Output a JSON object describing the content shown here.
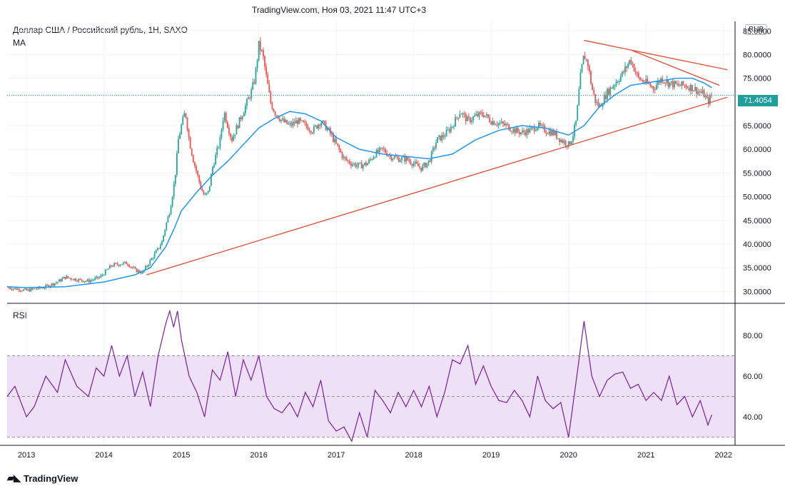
{
  "header": {
    "title": "TradingView.com, Ноя 03, 2021 11:47 UTC+3"
  },
  "main_panel": {
    "symbol": "Доллар США / Российский рубль, 1Н, SAXO",
    "indicator": "MA",
    "currency": "RUB",
    "last_price": "71.4054"
  },
  "rsi_panel": {
    "label": "RSI"
  },
  "brand": {
    "name": "TradingView"
  },
  "colors": {
    "candle_up": "#26a69a",
    "candle_down": "#ef5350",
    "ma": "#2196f3",
    "trendline": "#e24a33",
    "rsi": "#7b1fa2",
    "rsi_band": "#ede0f7",
    "last_price": "#1e9f9c"
  },
  "chart_data": [
    {
      "type": "candlestick",
      "title": "Доллар США / Российский рубль, 1Н, SAXO",
      "x_ticks": [
        "2013",
        "2014",
        "2015",
        "2016",
        "2017",
        "2018",
        "2019",
        "2020",
        "2021",
        "2022"
      ],
      "y_ticks": [
        "30.0000",
        "35.0000",
        "40.0000",
        "45.0000",
        "50.0000",
        "55.0000",
        "60.0000",
        "65.0000",
        "70.0000",
        "75.0000",
        "80.0000",
        "85.0000"
      ],
      "ylim": [
        27.5,
        87
      ],
      "xlim": [
        2012.75,
        2022.15
      ],
      "last_price": 71.4054,
      "close_series": {
        "x": [
          2012.75,
          2012.9,
          2013.0,
          2013.1,
          2013.25,
          2013.4,
          2013.5,
          2013.65,
          2013.8,
          2013.95,
          2014.1,
          2014.2,
          2014.3,
          2014.4,
          2014.5,
          2014.6,
          2014.7,
          2014.75,
          2014.8,
          2014.85,
          2014.9,
          2014.93,
          2014.96,
          2015.0,
          2015.05,
          2015.1,
          2015.15,
          2015.2,
          2015.25,
          2015.3,
          2015.35,
          2015.4,
          2015.45,
          2015.5,
          2015.55,
          2015.6,
          2015.65,
          2015.7,
          2015.8,
          2015.9,
          2015.95,
          2016.0,
          2016.05,
          2016.1,
          2016.15,
          2016.2,
          2016.3,
          2016.4,
          2016.5,
          2016.6,
          2016.7,
          2016.8,
          2016.9,
          2017.0,
          2017.1,
          2017.2,
          2017.3,
          2017.4,
          2017.5,
          2017.6,
          2017.7,
          2017.8,
          2017.9,
          2018.0,
          2018.1,
          2018.2,
          2018.3,
          2018.4,
          2018.5,
          2018.6,
          2018.7,
          2018.8,
          2018.9,
          2019.0,
          2019.1,
          2019.2,
          2019.3,
          2019.4,
          2019.5,
          2019.6,
          2019.7,
          2019.8,
          2019.9,
          2020.0,
          2020.05,
          2020.1,
          2020.15,
          2020.2,
          2020.25,
          2020.3,
          2020.35,
          2020.4,
          2020.5,
          2020.6,
          2020.7,
          2020.8,
          2020.85,
          2020.9,
          2021.0,
          2021.1,
          2021.2,
          2021.3,
          2021.4,
          2021.5,
          2021.6,
          2021.7,
          2021.75,
          2021.8,
          2021.85
        ],
        "y": [
          30.8,
          30.5,
          30.2,
          30.5,
          31.0,
          32.0,
          33.0,
          32.5,
          32.2,
          33.0,
          35.5,
          35.8,
          36.0,
          34.5,
          34.0,
          36.5,
          39.0,
          40.5,
          44.0,
          47.0,
          52.0,
          56.0,
          62.0,
          65.0,
          68.0,
          62.0,
          58.0,
          55.0,
          52.0,
          50.0,
          51.0,
          56.0,
          59.0,
          62.0,
          68.0,
          65.0,
          62.0,
          64.0,
          68.0,
          72.0,
          75.0,
          82.0,
          80.0,
          75.0,
          70.0,
          68.0,
          66.0,
          65.0,
          66.0,
          65.0,
          64.0,
          66.0,
          64.0,
          61.0,
          58.0,
          57.0,
          56.5,
          57.0,
          59.0,
          60.0,
          58.5,
          58.0,
          58.0,
          57.0,
          56.0,
          57.5,
          62.0,
          63.0,
          65.0,
          68.0,
          66.0,
          67.0,
          67.5,
          66.0,
          65.5,
          65.0,
          64.0,
          63.5,
          64.0,
          65.0,
          64.0,
          63.5,
          62.0,
          61.0,
          62.5,
          66.0,
          75.0,
          80.0,
          78.0,
          73.0,
          70.0,
          69.0,
          72.0,
          74.0,
          76.0,
          79.0,
          77.0,
          75.0,
          74.0,
          73.0,
          75.0,
          74.0,
          73.5,
          73.5,
          73.0,
          72.0,
          71.5,
          70.0,
          71.4054
        ]
      },
      "ma_series": {
        "x": [
          2012.75,
          2013.0,
          2013.5,
          2014.0,
          2014.4,
          2014.6,
          2014.8,
          2014.9,
          2015.0,
          2015.2,
          2015.4,
          2015.6,
          2015.8,
          2016.0,
          2016.2,
          2016.4,
          2016.6,
          2016.8,
          2017.0,
          2017.3,
          2017.6,
          2017.9,
          2018.2,
          2018.5,
          2018.8,
          2019.1,
          2019.4,
          2019.7,
          2020.0,
          2020.2,
          2020.4,
          2020.6,
          2020.8,
          2021.0,
          2021.2,
          2021.4,
          2021.6,
          2021.75,
          2021.85
        ],
        "y": [
          31.0,
          30.8,
          31.0,
          32.0,
          33.5,
          35.0,
          39.5,
          43.0,
          47.0,
          51.0,
          54.5,
          57.5,
          61.0,
          64.5,
          66.5,
          68.0,
          67.5,
          66.0,
          62.5,
          60.0,
          59.0,
          58.5,
          58.0,
          59.0,
          62.0,
          64.0,
          65.0,
          64.5,
          63.0,
          65.0,
          69.0,
          71.5,
          73.5,
          74.0,
          74.5,
          75.0,
          75.0,
          74.0,
          73.0
        ]
      },
      "trendlines": [
        {
          "x": [
            2014.55,
            2022.05
          ],
          "y": [
            33.5,
            71.0
          ]
        },
        {
          "x": [
            2020.2,
            2022.05
          ],
          "y": [
            83.0,
            76.8
          ]
        },
        {
          "x": [
            2020.8,
            2021.95
          ],
          "y": [
            81.0,
            73.5
          ]
        }
      ]
    },
    {
      "type": "line",
      "title": "RSI",
      "y_ticks": [
        "40.00",
        "60.00",
        "80.00"
      ],
      "ylim": [
        26,
        94
      ],
      "bands": [
        30,
        50,
        70
      ],
      "x": [
        2012.75,
        2012.85,
        2013.0,
        2013.1,
        2013.25,
        2013.4,
        2013.5,
        2013.65,
        2013.8,
        2013.9,
        2014.0,
        2014.1,
        2014.2,
        2014.3,
        2014.4,
        2014.5,
        2014.6,
        2014.7,
        2014.8,
        2014.85,
        2014.9,
        2014.95,
        2015.0,
        2015.1,
        2015.2,
        2015.3,
        2015.4,
        2015.5,
        2015.6,
        2015.7,
        2015.8,
        2015.9,
        2016.0,
        2016.1,
        2016.2,
        2016.3,
        2016.4,
        2016.5,
        2016.6,
        2016.7,
        2016.8,
        2016.9,
        2017.0,
        2017.1,
        2017.2,
        2017.3,
        2017.4,
        2017.5,
        2017.6,
        2017.7,
        2017.8,
        2017.9,
        2018.0,
        2018.1,
        2018.2,
        2018.3,
        2018.4,
        2018.5,
        2018.6,
        2018.7,
        2018.8,
        2018.9,
        2019.0,
        2019.1,
        2019.2,
        2019.3,
        2019.4,
        2019.5,
        2019.6,
        2019.7,
        2019.8,
        2019.9,
        2020.0,
        2020.1,
        2020.2,
        2020.3,
        2020.4,
        2020.5,
        2020.6,
        2020.7,
        2020.8,
        2020.9,
        2021.0,
        2021.1,
        2021.2,
        2021.3,
        2021.4,
        2021.5,
        2021.6,
        2021.7,
        2021.8,
        2021.85
      ],
      "y": [
        50,
        55,
        40,
        45,
        60,
        52,
        68,
        55,
        50,
        64,
        60,
        75,
        60,
        70,
        50,
        62,
        45,
        70,
        86,
        92,
        84,
        92,
        78,
        60,
        52,
        40,
        63,
        58,
        72,
        50,
        68,
        58,
        70,
        50,
        44,
        42,
        47,
        40,
        52,
        45,
        58,
        38,
        33,
        35,
        28,
        42,
        30,
        53,
        48,
        42,
        52,
        45,
        53,
        45,
        55,
        40,
        52,
        68,
        66,
        75,
        56,
        65,
        55,
        48,
        47,
        53,
        48,
        40,
        60,
        48,
        44,
        47,
        30,
        58,
        87,
        60,
        50,
        58,
        61,
        62,
        54,
        56,
        48,
        52,
        48,
        60,
        46,
        50,
        40,
        48,
        36,
        41
      ]
    }
  ]
}
